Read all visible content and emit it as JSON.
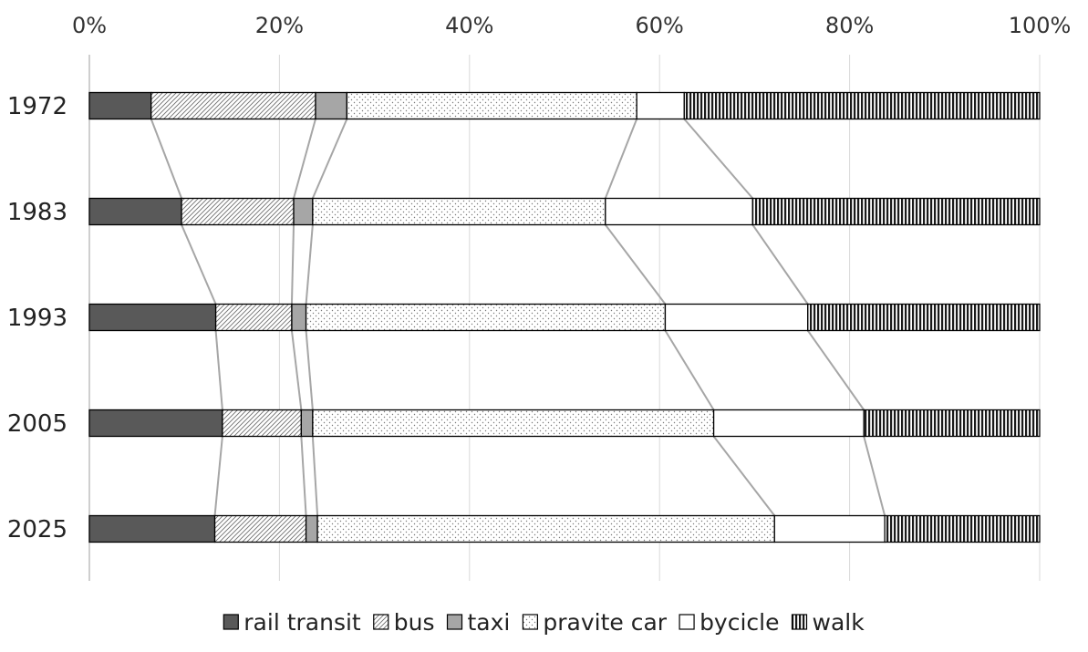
{
  "chart_data": {
    "type": "bar",
    "orientation": "horizontal",
    "stacked": "percent",
    "categories": [
      "1972",
      "1983",
      "1993",
      "2005",
      "2025"
    ],
    "series": [
      {
        "name": "rail transit",
        "values": [
          6.5,
          9.7,
          13.3,
          14.0,
          13.2
        ]
      },
      {
        "name": "bus",
        "values": [
          17.3,
          11.8,
          8.0,
          8.3,
          9.6
        ]
      },
      {
        "name": "taxi",
        "values": [
          3.3,
          2.0,
          1.5,
          1.2,
          1.2
        ]
      },
      {
        "name": "pravite car",
        "values": [
          30.5,
          30.8,
          37.8,
          42.2,
          48.1
        ]
      },
      {
        "name": "bycicle",
        "values": [
          5.0,
          15.5,
          15.0,
          15.8,
          11.6
        ]
      },
      {
        "name": "walk",
        "values": [
          37.4,
          30.2,
          24.4,
          18.5,
          16.3
        ]
      }
    ],
    "x_ticks": [
      "0%",
      "20%",
      "40%",
      "60%",
      "80%",
      "100%"
    ],
    "xlim": [
      0,
      100
    ],
    "xgrid": true,
    "connector_lines": true,
    "legend_position": "bottom",
    "title": "",
    "xlabel": "",
    "ylabel": "",
    "colors": {
      "rail_transit": "#595959",
      "taxi": "#a6a6a6",
      "outline": "#000000",
      "grid": "#d9d9d9",
      "connector": "#a6a6a6"
    }
  }
}
